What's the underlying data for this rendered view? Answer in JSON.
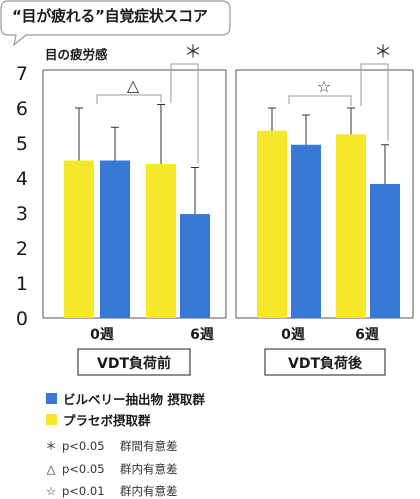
{
  "title": "“目が疲れる”自覚症状スコア",
  "chart_data": {
    "type": "bar",
    "ylabel": "目の疲労感",
    "ylim": [
      0,
      7
    ],
    "yticks": [
      0,
      1,
      2,
      3,
      4,
      5,
      6,
      7
    ],
    "grid": false,
    "colors": {
      "extract": "#3a78d8",
      "placebo": "#f5e82a"
    },
    "series": [
      {
        "name": "ビルベリー抽出物 摂取群",
        "key": "extract"
      },
      {
        "name": "プラセボ摂取群",
        "key": "placebo"
      }
    ],
    "panels": [
      {
        "label": "VDT負荷前",
        "groups": [
          {
            "label": "0週",
            "placebo": 4.5,
            "placebo_err": 6.0,
            "extract": 4.5,
            "extract_err": 5.45
          },
          {
            "label": "6週",
            "placebo": 4.4,
            "placebo_err": 6.1,
            "extract": 2.97,
            "extract_err": 4.3
          }
        ],
        "annotations": [
          {
            "symbol": "△",
            "from": "0週 placebo/extract",
            "to": "6週 placebo"
          },
          {
            "symbol": "＊",
            "between": "6週 placebo / 6週 extract"
          }
        ]
      },
      {
        "label": "VDT負荷後",
        "groups": [
          {
            "label": "0週",
            "placebo": 5.35,
            "placebo_err": 6.0,
            "extract": 4.95,
            "extract_err": 5.8
          },
          {
            "label": "6週",
            "placebo": 5.25,
            "placebo_err": 6.0,
            "extract": 3.83,
            "extract_err": 4.95
          }
        ],
        "annotations": [
          {
            "symbol": "☆",
            "from": "0週 placebo/extract",
            "to": "6週 placebo"
          },
          {
            "symbol": "＊",
            "between": "6週 placebo / 6週 extract"
          }
        ]
      }
    ]
  },
  "legend": [
    {
      "label": "ビルベリー抽出物 摂取群",
      "color": "#3a78d8"
    },
    {
      "label": "プラセボ摂取群",
      "color": "#f5e82a"
    }
  ],
  "notes": [
    {
      "symbol": "＊",
      "p": "p<0.05",
      "text": "群間有意差"
    },
    {
      "symbol": "△",
      "p": "p<0.05",
      "text": "群内有意差"
    },
    {
      "symbol": "☆",
      "p": "p<0.01",
      "text": "群内有意差"
    }
  ]
}
